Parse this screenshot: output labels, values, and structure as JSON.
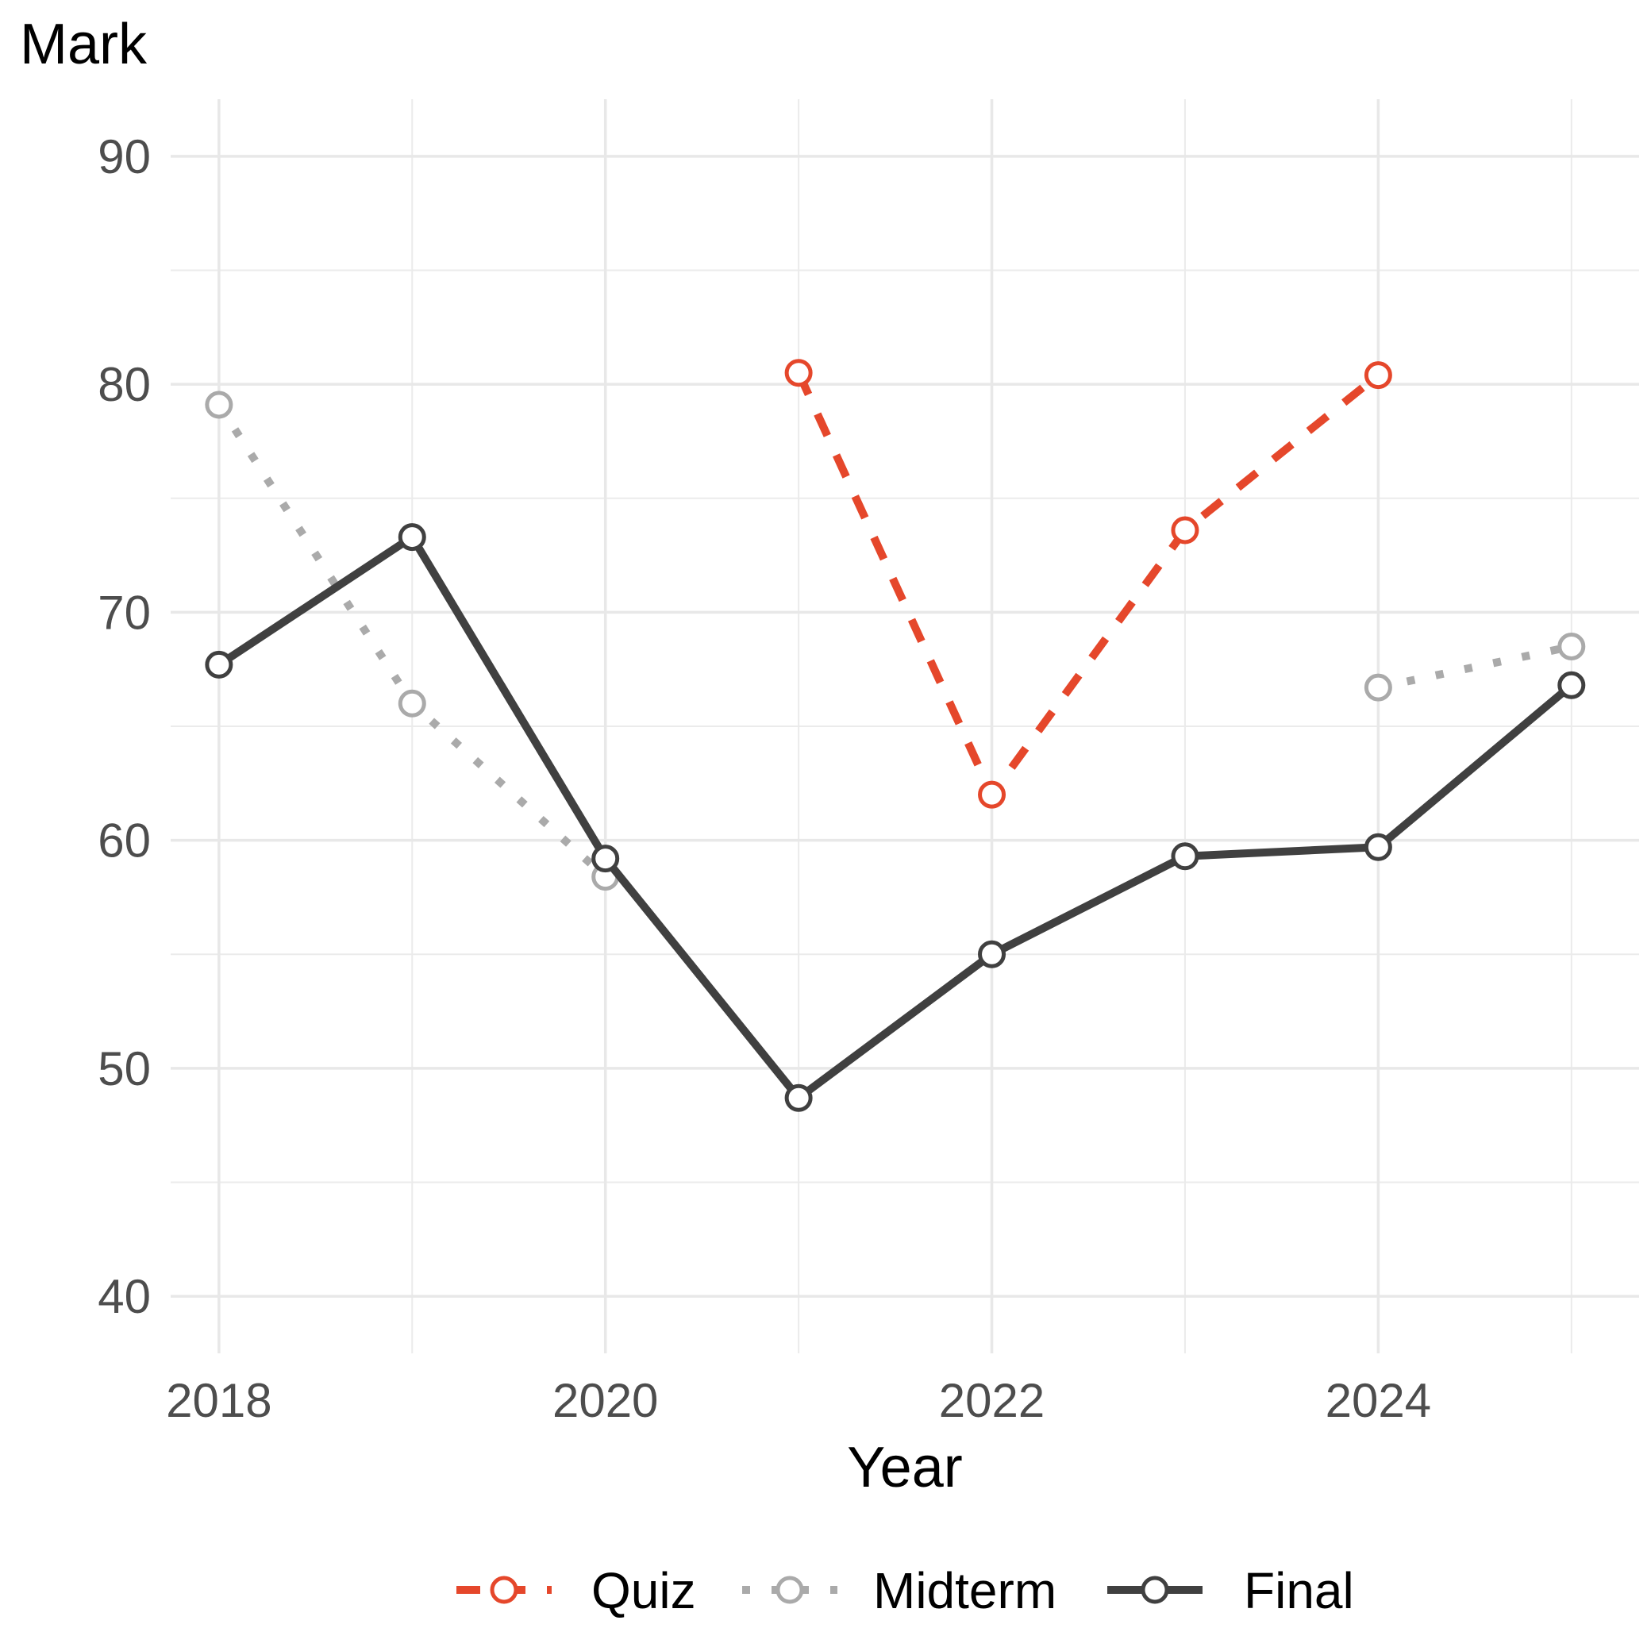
{
  "chart_data": {
    "type": "line",
    "title": "",
    "xlabel": "Year",
    "ylabel": "Mark",
    "xlim": [
      2017.75,
      2025.35
    ],
    "ylim": [
      37.5,
      92.5
    ],
    "x_ticks": [
      2018,
      2020,
      2022,
      2024
    ],
    "y_ticks": [
      40,
      50,
      60,
      70,
      80,
      90
    ],
    "grid": true,
    "legend_position": "bottom",
    "series": [
      {
        "name": "Quiz",
        "color": "#e5472b",
        "line_style": "dashed",
        "points": [
          {
            "x": 2021,
            "y": 80.5
          },
          {
            "x": 2022,
            "y": 62.0
          },
          {
            "x": 2023,
            "y": 73.6
          },
          {
            "x": 2024,
            "y": 80.4
          }
        ]
      },
      {
        "name": "Midterm",
        "color": "#aaaaaa",
        "line_style": "dotted",
        "points": [
          {
            "x": 2018,
            "y": 79.1
          },
          {
            "x": 2019,
            "y": 66.0
          },
          {
            "x": 2020,
            "y": 58.4
          },
          {
            "x": 2024,
            "y": 66.7
          },
          {
            "x": 2025,
            "y": 68.5
          }
        ],
        "segments": [
          [
            0,
            2
          ],
          [
            3,
            4
          ]
        ]
      },
      {
        "name": "Final",
        "color": "#404040",
        "line_style": "solid",
        "points": [
          {
            "x": 2018,
            "y": 67.7
          },
          {
            "x": 2019,
            "y": 73.3
          },
          {
            "x": 2020,
            "y": 59.2
          },
          {
            "x": 2021,
            "y": 48.7
          },
          {
            "x": 2022,
            "y": 55.0
          },
          {
            "x": 2023,
            "y": 59.3
          },
          {
            "x": 2024,
            "y": 59.7
          },
          {
            "x": 2025,
            "y": 66.8
          }
        ]
      }
    ]
  }
}
